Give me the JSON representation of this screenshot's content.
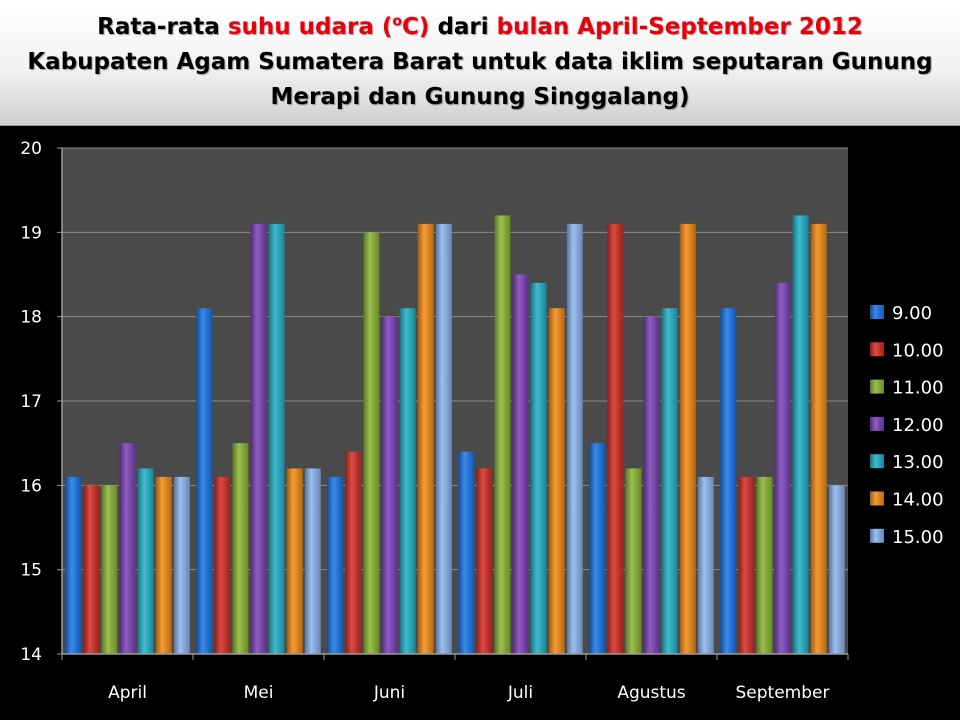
{
  "title": {
    "line1": [
      {
        "text": "Rata-rata ",
        "highlight": false
      },
      {
        "text": "suhu udara (",
        "highlight": true
      },
      {
        "text": "o",
        "highlight": true,
        "sup": true
      },
      {
        "text": "C)",
        "highlight": true
      },
      {
        "text": " dari ",
        "highlight": false
      },
      {
        "text": "bulan April-September 2012",
        "highlight": true
      }
    ],
    "line2": "Kabupaten Agam Sumatera Barat untuk data iklim seputaran Gunung",
    "line3": "Merapi dan Gunung Singgalang)"
  },
  "colors": {
    "background": "#000000",
    "plot_area": "#4a4a4a",
    "title_highlight": "#e8000b",
    "text": "#ffffff"
  },
  "chart_data": {
    "type": "bar",
    "categories": [
      "April",
      "Mei",
      "Juni",
      "Juli",
      "Agustus",
      "September"
    ],
    "ylim": [
      14,
      20
    ],
    "yticks": [
      14,
      15,
      16,
      17,
      18,
      19,
      20
    ],
    "grid": true,
    "legend_position": "right",
    "series": [
      {
        "name": "9.00",
        "color": "#1874e8",
        "values": [
          16.1,
          18.1,
          16.1,
          16.4,
          16.5,
          18.1
        ]
      },
      {
        "name": "10.00",
        "color": "#d42b23",
        "values": [
          16.0,
          16.1,
          16.4,
          16.2,
          19.1,
          16.1
        ]
      },
      {
        "name": "11.00",
        "color": "#8bb531",
        "values": [
          16.0,
          16.5,
          19.0,
          19.2,
          16.2,
          16.1
        ]
      },
      {
        "name": "12.00",
        "color": "#7b40b8",
        "values": [
          16.5,
          19.1,
          18.0,
          18.5,
          18.0,
          18.4
        ]
      },
      {
        "name": "13.00",
        "color": "#1fb0c8",
        "values": [
          16.2,
          19.1,
          18.1,
          18.4,
          18.1,
          19.2
        ]
      },
      {
        "name": "14.00",
        "color": "#f48a12",
        "values": [
          16.1,
          16.2,
          19.1,
          18.1,
          19.1,
          19.1
        ]
      },
      {
        "name": "15.00",
        "color": "#8ab4f0",
        "values": [
          16.1,
          16.2,
          19.1,
          19.1,
          16.1,
          16.0
        ]
      }
    ]
  }
}
